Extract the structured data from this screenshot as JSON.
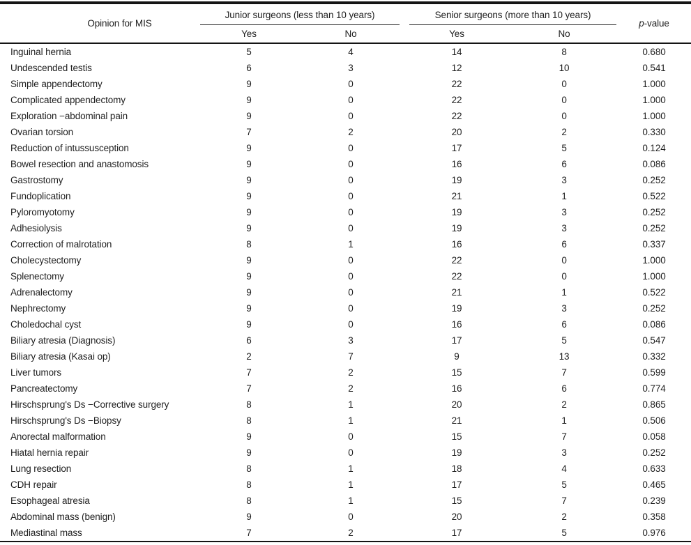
{
  "table": {
    "opinion_header": "Opinion for MIS",
    "junior_group": {
      "label": "Junior surgeons (less than 10 years)",
      "sub_yes": "Yes",
      "sub_no": "No"
    },
    "senior_group": {
      "label": "Senior surgeons (more than 10 years)",
      "sub_yes": "Yes",
      "sub_no": "No"
    },
    "pvalue_header": {
      "italic": "p",
      "rest": "-value"
    },
    "rows": [
      {
        "label": "Inguinal hernia",
        "junior_yes": "5",
        "junior_no": "4",
        "senior_yes": "14",
        "senior_no": "8",
        "p": "0.680"
      },
      {
        "label": "Undescended testis",
        "junior_yes": "6",
        "junior_no": "3",
        "senior_yes": "12",
        "senior_no": "10",
        "p": "0.541"
      },
      {
        "label": "Simple appendectomy",
        "junior_yes": "9",
        "junior_no": "0",
        "senior_yes": "22",
        "senior_no": "0",
        "p": "1.000"
      },
      {
        "label": "Complicated appendectomy",
        "junior_yes": "9",
        "junior_no": "0",
        "senior_yes": "22",
        "senior_no": "0",
        "p": "1.000"
      },
      {
        "label": "Exploration −abdominal pain",
        "junior_yes": "9",
        "junior_no": "0",
        "senior_yes": "22",
        "senior_no": "0",
        "p": "1.000"
      },
      {
        "label": "Ovarian torsion",
        "junior_yes": "7",
        "junior_no": "2",
        "senior_yes": "20",
        "senior_no": "2",
        "p": "0.330"
      },
      {
        "label": "Reduction of intussusception",
        "junior_yes": "9",
        "junior_no": "0",
        "senior_yes": "17",
        "senior_no": "5",
        "p": "0.124"
      },
      {
        "label": "Bowel resection and anastomosis",
        "junior_yes": "9",
        "junior_no": "0",
        "senior_yes": "16",
        "senior_no": "6",
        "p": "0.086"
      },
      {
        "label": "Gastrostomy",
        "junior_yes": "9",
        "junior_no": "0",
        "senior_yes": "19",
        "senior_no": "3",
        "p": "0.252"
      },
      {
        "label": "Fundoplication",
        "junior_yes": "9",
        "junior_no": "0",
        "senior_yes": "21",
        "senior_no": "1",
        "p": "0.522"
      },
      {
        "label": "Pyloromyotomy",
        "junior_yes": "9",
        "junior_no": "0",
        "senior_yes": "19",
        "senior_no": "3",
        "p": "0.252"
      },
      {
        "label": "Adhesiolysis",
        "junior_yes": "9",
        "junior_no": "0",
        "senior_yes": "19",
        "senior_no": "3",
        "p": "0.252"
      },
      {
        "label": "Correction of malrotation",
        "junior_yes": "8",
        "junior_no": "1",
        "senior_yes": "16",
        "senior_no": "6",
        "p": "0.337"
      },
      {
        "label": "Cholecystectomy",
        "junior_yes": "9",
        "junior_no": "0",
        "senior_yes": "22",
        "senior_no": "0",
        "p": "1.000"
      },
      {
        "label": "Splenectomy",
        "junior_yes": "9",
        "junior_no": "0",
        "senior_yes": "22",
        "senior_no": "0",
        "p": "1.000"
      },
      {
        "label": "Adrenalectomy",
        "junior_yes": "9",
        "junior_no": "0",
        "senior_yes": "21",
        "senior_no": "1",
        "p": "0.522"
      },
      {
        "label": "Nephrectomy",
        "junior_yes": "9",
        "junior_no": "0",
        "senior_yes": "19",
        "senior_no": "3",
        "p": "0.252"
      },
      {
        "label": "Choledochal cyst",
        "junior_yes": "9",
        "junior_no": "0",
        "senior_yes": "16",
        "senior_no": "6",
        "p": "0.086"
      },
      {
        "label": "Biliary atresia (Diagnosis)",
        "junior_yes": "6",
        "junior_no": "3",
        "senior_yes": "17",
        "senior_no": "5",
        "p": "0.547"
      },
      {
        "label": "Biliary atresia (Kasai op)",
        "junior_yes": "2",
        "junior_no": "7",
        "senior_yes": "9",
        "senior_no": "13",
        "p": "0.332"
      },
      {
        "label": "Liver tumors",
        "junior_yes": "7",
        "junior_no": "2",
        "senior_yes": "15",
        "senior_no": "7",
        "p": "0.599"
      },
      {
        "label": "Pancreatectomy",
        "junior_yes": "7",
        "junior_no": "2",
        "senior_yes": "16",
        "senior_no": "6",
        "p": "0.774"
      },
      {
        "label": "Hirschsprung's Ds −Corrective surgery",
        "junior_yes": "8",
        "junior_no": "1",
        "senior_yes": "20",
        "senior_no": "2",
        "p": "0.865"
      },
      {
        "label": "Hirschsprung's Ds −Biopsy",
        "junior_yes": "8",
        "junior_no": "1",
        "senior_yes": "21",
        "senior_no": "1",
        "p": "0.506"
      },
      {
        "label": "Anorectal malformation",
        "junior_yes": "9",
        "junior_no": "0",
        "senior_yes": "15",
        "senior_no": "7",
        "p": "0.058"
      },
      {
        "label": "Hiatal hernia repair",
        "junior_yes": "9",
        "junior_no": "0",
        "senior_yes": "19",
        "senior_no": "3",
        "p": "0.252"
      },
      {
        "label": "Lung resection",
        "junior_yes": "8",
        "junior_no": "1",
        "senior_yes": "18",
        "senior_no": "4",
        "p": "0.633"
      },
      {
        "label": "CDH repair",
        "junior_yes": "8",
        "junior_no": "1",
        "senior_yes": "17",
        "senior_no": "5",
        "p": "0.465"
      },
      {
        "label": "Esophageal atresia",
        "junior_yes": "8",
        "junior_no": "1",
        "senior_yes": "15",
        "senior_no": "7",
        "p": "0.239"
      },
      {
        "label": "Abdominal mass (benign)",
        "junior_yes": "9",
        "junior_no": "0",
        "senior_yes": "20",
        "senior_no": "2",
        "p": "0.358"
      },
      {
        "label": "Mediastinal mass",
        "junior_yes": "7",
        "junior_no": "2",
        "senior_yes": "17",
        "senior_no": "5",
        "p": "0.976"
      }
    ]
  },
  "colors": {
    "text": "#1e1e1e",
    "rule": "#141414"
  }
}
